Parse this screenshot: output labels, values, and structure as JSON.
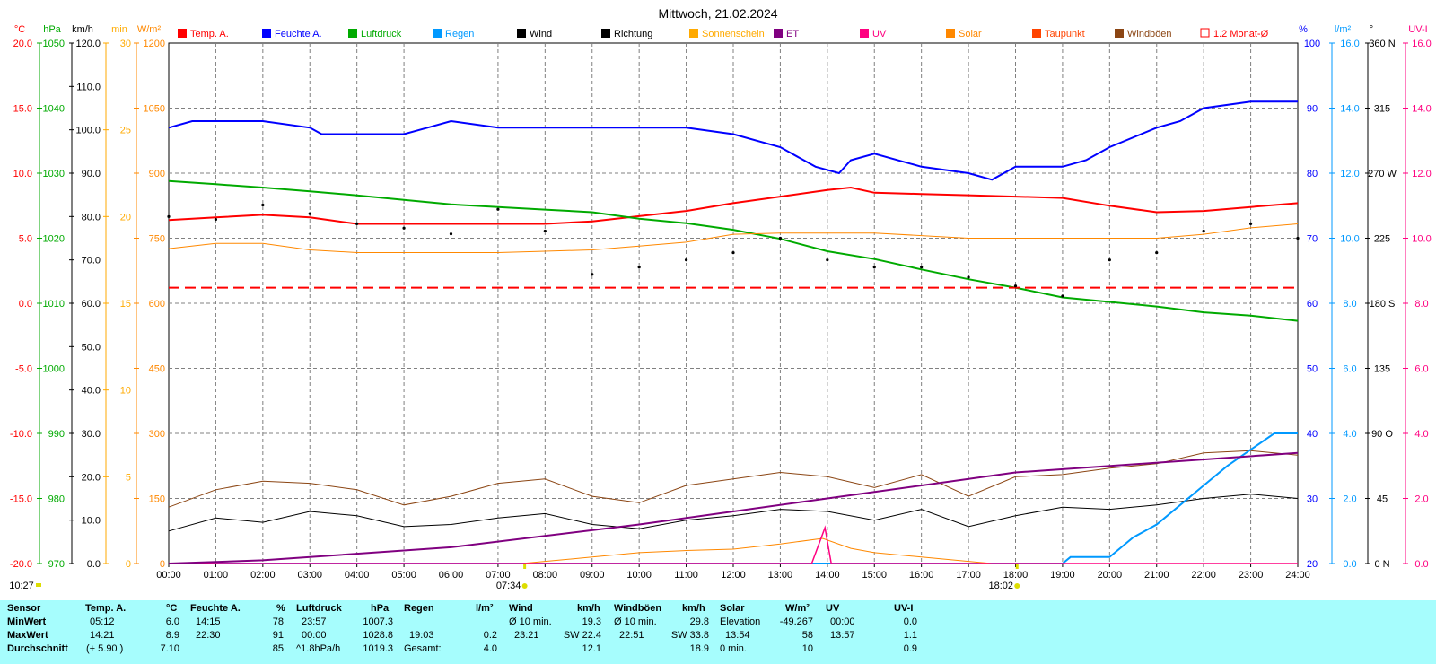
{
  "title": "Mittwoch, 21.02.2024",
  "colors": {
    "temp": "#ff0000",
    "hum": "#0000ff",
    "press": "#00aa00",
    "rain": "#0099ff",
    "wind": "#000000",
    "dir": "#000000",
    "sunshine": "#ffaa00",
    "et": "#800080",
    "uv": "#ff0080",
    "solar": "#ff8800",
    "dew": "#ff4400",
    "gust": "#8b4513",
    "avg": "#ff0000",
    "panel": "#a6fdfd"
  },
  "legend": [
    {
      "key": "temp",
      "label": "Temp. A."
    },
    {
      "key": "hum",
      "label": "Feuchte A."
    },
    {
      "key": "press",
      "label": "Luftdruck"
    },
    {
      "key": "rain",
      "label": "Regen"
    },
    {
      "key": "wind",
      "label": "Wind"
    },
    {
      "key": "dir",
      "label": "Richtung"
    },
    {
      "key": "sunshine",
      "label": "Sonnenschein"
    },
    {
      "key": "et",
      "label": "ET"
    },
    {
      "key": "uv",
      "label": "UV"
    },
    {
      "key": "solar",
      "label": "Solar"
    },
    {
      "key": "dew",
      "label": "Taupunkt"
    },
    {
      "key": "gust",
      "label": "Windböen"
    },
    {
      "key": "avg",
      "label": "1.2 Monat-Ø"
    }
  ],
  "axes": {
    "temp": {
      "unit": "°C",
      "ticks": [
        "20.0",
        "15.0",
        "10.0",
        "5.0",
        "0.0",
        "-5.0",
        "-10.0",
        "-15.0",
        "-20.0"
      ]
    },
    "press": {
      "unit": "hPa",
      "ticks": [
        "1050",
        "1040",
        "1030",
        "1020",
        "1010",
        "1000",
        "990",
        "980",
        "970"
      ]
    },
    "wind": {
      "unit": "km/h",
      "ticks": [
        "120.0",
        "110.0",
        "100.0",
        "90.0",
        "80.0",
        "70.0",
        "60.0",
        "50.0",
        "40.0",
        "30.0",
        "20.0",
        "10.0",
        "0.0"
      ]
    },
    "sunshine": {
      "unit": "min",
      "ticks": [
        "30",
        "25",
        "20",
        "15",
        "10",
        "5",
        "0"
      ]
    },
    "solar": {
      "unit": "W/m²",
      "ticks": [
        "1200",
        "1050",
        "900",
        "750",
        "600",
        "450",
        "300",
        "150",
        "0"
      ]
    },
    "hum": {
      "unit": "%",
      "ticks": [
        "100",
        "90",
        "80",
        "70",
        "60",
        "50",
        "40",
        "30",
        "20"
      ]
    },
    "rain": {
      "unit": "l/m²",
      "ticks": [
        "16.0",
        "14.0",
        "12.0",
        "10.0",
        "8.0",
        "6.0",
        "4.0",
        "2.0",
        "0.0"
      ]
    },
    "dir": {
      "unit": "°",
      "ticks": [
        "360 N",
        "315",
        "270 W",
        "225",
        "180 S",
        "135",
        "90 O",
        "45",
        "0 N"
      ]
    },
    "uvi": {
      "unit": "UV-I",
      "ticks": [
        "16.0",
        "14.0",
        "12.0",
        "10.0",
        "8.0",
        "6.0",
        "4.0",
        "2.0",
        "0.0"
      ]
    }
  },
  "x_ticks": [
    "00:00",
    "01:00",
    "02:00",
    "03:00",
    "04:00",
    "05:00",
    "06:00",
    "07:00",
    "08:00",
    "09:00",
    "10:00",
    "11:00",
    "12:00",
    "13:00",
    "14:00",
    "15:00",
    "16:00",
    "17:00",
    "18:00",
    "19:00",
    "20:00",
    "21:00",
    "22:00",
    "23:00",
    "24:00"
  ],
  "markers": {
    "time_now": "10:27",
    "sunrise": "07:34",
    "sunset": "18:02"
  },
  "chart_data": {
    "type": "line",
    "title": "Mittwoch, 21.02.2024",
    "x_range": [
      "00:00",
      "24:00"
    ],
    "grid": true,
    "legend_position": "top",
    "series": [
      {
        "name": "Temp. A.",
        "unit": "°C",
        "x": [
          "00:00",
          "01:00",
          "02:00",
          "03:00",
          "04:00",
          "05:00",
          "06:00",
          "07:00",
          "08:00",
          "09:00",
          "10:00",
          "11:00",
          "12:00",
          "13:00",
          "14:00",
          "14:30",
          "15:00",
          "16:00",
          "17:00",
          "18:00",
          "19:00",
          "20:00",
          "21:00",
          "22:00",
          "23:00",
          "24:00"
        ],
        "y": [
          6.4,
          6.6,
          6.8,
          6.6,
          6.1,
          6.1,
          6.1,
          6.1,
          6.1,
          6.3,
          6.7,
          7.1,
          7.7,
          8.2,
          8.7,
          8.9,
          8.5,
          8.4,
          8.3,
          8.2,
          8.1,
          7.5,
          7.0,
          7.1,
          7.4,
          7.7
        ]
      },
      {
        "name": "Feuchte A.",
        "unit": "%",
        "x": [
          "00:00",
          "00:30",
          "01:00",
          "02:00",
          "03:00",
          "03:15",
          "04:00",
          "05:00",
          "05:30",
          "06:00",
          "07:00",
          "08:00",
          "09:00",
          "10:00",
          "11:00",
          "12:00",
          "13:00",
          "13:45",
          "14:15",
          "14:30",
          "15:00",
          "16:00",
          "17:00",
          "17:30",
          "18:00",
          "19:00",
          "19:30",
          "20:00",
          "21:00",
          "21:30",
          "22:00",
          "23:00",
          "24:00"
        ],
        "y": [
          87,
          88,
          88,
          88,
          87,
          86,
          86,
          86,
          87,
          88,
          87,
          87,
          87,
          87,
          87,
          86,
          84,
          81,
          80,
          82,
          83,
          81,
          80,
          79,
          81,
          81,
          82,
          84,
          87,
          88,
          90,
          91,
          91
        ]
      },
      {
        "name": "Luftdruck",
        "unit": "hPa",
        "x": [
          "00:00",
          "01:00",
          "02:00",
          "03:00",
          "04:00",
          "05:00",
          "06:00",
          "07:00",
          "08:00",
          "09:00",
          "10:00",
          "11:00",
          "12:00",
          "13:00",
          "14:00",
          "15:00",
          "16:00",
          "17:00",
          "18:00",
          "19:00",
          "20:00",
          "21:00",
          "22:00",
          "23:00",
          "24:00"
        ],
        "y": [
          1028.8,
          1028.3,
          1027.8,
          1027.2,
          1026.6,
          1025.9,
          1025.2,
          1024.8,
          1024.4,
          1024.0,
          1023.0,
          1022.3,
          1021.3,
          1019.9,
          1018.0,
          1016.8,
          1015.2,
          1013.7,
          1012.4,
          1010.9,
          1010.2,
          1009.5,
          1008.6,
          1008.1,
          1007.3
        ]
      },
      {
        "name": "Taupunkt",
        "unit": "°C",
        "x": [
          "00:00",
          "01:00",
          "02:00",
          "03:00",
          "04:00",
          "05:00",
          "06:00",
          "07:00",
          "08:00",
          "09:00",
          "10:00",
          "11:00",
          "12:00",
          "13:00",
          "14:00",
          "15:00",
          "16:00",
          "17:00",
          "18:00",
          "19:00",
          "20:00",
          "21:00",
          "22:00",
          "23:00",
          "24:00"
        ],
        "y": [
          4.2,
          4.6,
          4.6,
          4.1,
          3.9,
          3.9,
          3.9,
          3.9,
          4.0,
          4.1,
          4.4,
          4.7,
          5.3,
          5.4,
          5.4,
          5.4,
          5.2,
          5.0,
          5.0,
          5.0,
          5.0,
          5.0,
          5.3,
          5.8,
          6.1
        ]
      },
      {
        "name": "1.2 Monat-Ø",
        "unit": "°C",
        "x": [
          "00:00",
          "24:00"
        ],
        "y": [
          1.2,
          1.2
        ]
      },
      {
        "name": "Wind",
        "unit": "km/h",
        "x": [
          "00:00",
          "01:00",
          "02:00",
          "03:00",
          "04:00",
          "05:00",
          "06:00",
          "07:00",
          "08:00",
          "09:00",
          "10:00",
          "11:00",
          "12:00",
          "13:00",
          "14:00",
          "15:00",
          "16:00",
          "17:00",
          "18:00",
          "19:00",
          "20:00",
          "21:00",
          "22:00",
          "23:00",
          "24:00"
        ],
        "y": [
          7.5,
          10.5,
          9.5,
          12.0,
          11.0,
          8.5,
          9.0,
          10.5,
          11.5,
          9.0,
          8.0,
          10.0,
          11.0,
          12.5,
          12.0,
          10.0,
          12.5,
          8.5,
          11.0,
          13.0,
          12.5,
          13.5,
          15.0,
          16.0,
          15.0
        ]
      },
      {
        "name": "Windböen",
        "unit": "km/h",
        "x": [
          "00:00",
          "01:00",
          "02:00",
          "03:00",
          "04:00",
          "05:00",
          "06:00",
          "07:00",
          "08:00",
          "09:00",
          "10:00",
          "11:00",
          "12:00",
          "13:00",
          "14:00",
          "15:00",
          "16:00",
          "17:00",
          "18:00",
          "19:00",
          "20:00",
          "21:00",
          "22:00",
          "23:00",
          "24:00"
        ],
        "y": [
          13.0,
          17.0,
          19.0,
          18.5,
          17.0,
          13.5,
          15.5,
          18.5,
          19.5,
          15.5,
          14.0,
          18.0,
          19.5,
          21.0,
          20.0,
          17.5,
          20.5,
          15.5,
          20.0,
          20.5,
          22.0,
          23.0,
          25.5,
          26.0,
          25.0
        ]
      },
      {
        "name": "Richtung",
        "unit": "°",
        "type": "scatter",
        "x": [
          "00:00",
          "01:00",
          "02:00",
          "03:00",
          "04:00",
          "05:00",
          "06:00",
          "07:00",
          "08:00",
          "09:00",
          "10:00",
          "11:00",
          "12:00",
          "13:00",
          "14:00",
          "15:00",
          "16:00",
          "17:00",
          "18:00",
          "19:00",
          "20:00",
          "21:00",
          "22:00",
          "23:00",
          "24:00"
        ],
        "y": [
          240,
          238,
          248,
          242,
          235,
          232,
          228,
          245,
          230,
          200,
          205,
          210,
          215,
          225,
          210,
          205,
          205,
          198,
          192,
          185,
          210,
          215,
          230,
          235,
          225
        ]
      },
      {
        "name": "Regen",
        "unit": "l/m²",
        "x": [
          "00:00",
          "19:00",
          "19:10",
          "20:00",
          "20:30",
          "21:00",
          "21:30",
          "22:00",
          "22:30",
          "23:00",
          "23:30",
          "24:00"
        ],
        "y": [
          0.0,
          0.0,
          0.2,
          0.2,
          0.8,
          1.2,
          1.8,
          2.4,
          3.0,
          3.5,
          4.0,
          4.0
        ]
      },
      {
        "name": "Solar",
        "unit": "W/m²",
        "x": [
          "00:00",
          "07:30",
          "08:00",
          "09:00",
          "10:00",
          "11:00",
          "12:00",
          "13:00",
          "13:54",
          "14:30",
          "15:00",
          "16:00",
          "17:00",
          "17:30",
          "24:00"
        ],
        "y": [
          0,
          0,
          5,
          15,
          25,
          30,
          33,
          45,
          58,
          35,
          25,
          15,
          5,
          0,
          0
        ]
      },
      {
        "name": "UV",
        "unit": "UV-I",
        "x": [
          "00:00",
          "13:40",
          "13:57",
          "14:05",
          "24:00"
        ],
        "y": [
          0,
          0,
          1.1,
          0,
          0
        ]
      },
      {
        "name": "ET",
        "unit": "mm",
        "x": [
          "00:00",
          "02:00",
          "06:00",
          "10:00",
          "14:00",
          "18:00",
          "24:00"
        ],
        "y": [
          0.0,
          0.1,
          0.5,
          1.2,
          2.0,
          2.8,
          3.4
        ]
      }
    ]
  },
  "summary": {
    "row_labels": [
      "Sensor",
      "MinWert",
      "MaxWert",
      "Durchschnitt"
    ],
    "temp": {
      "head": "Temp. A.",
      "unit": "°C",
      "min_time": "05:12",
      "min": "6.0",
      "max_time": "14:21",
      "max": "8.9",
      "avg_note": "(+ 5.90 )",
      "avg": "7.10"
    },
    "hum": {
      "head": "Feuchte A.",
      "unit": "%",
      "min_time": "14:15",
      "min": "78",
      "max_time": "22:30",
      "max": "91",
      "avg": "85"
    },
    "press": {
      "head": "Luftdruck",
      "unit": "hPa",
      "min_time": "23:57",
      "min": "1007.3",
      "max_time": "00:00",
      "max": "1028.8",
      "avg_note": "^1.8hPa/h",
      "avg": "1019.3"
    },
    "rain": {
      "head": "Regen",
      "unit": "l/m²",
      "max_time": "19:03",
      "max": "0.2",
      "avg_note": "Gesamt:",
      "avg": "4.0"
    },
    "wind": {
      "head": "Wind",
      "unit": "km/h",
      "min_label": "Ø 10 min.",
      "min": "19.3",
      "max_time": "23:21",
      "max": "SW 22.4",
      "avg": "12.1"
    },
    "gust": {
      "head": "Windböen",
      "unit": "km/h",
      "min_label": "Ø 10 min.",
      "min": "29.8",
      "max_time": "22:51",
      "max": "SW 33.8",
      "avg": "18.9"
    },
    "solar": {
      "head": "Solar",
      "unit": "W/m²",
      "min_label": "Elevation",
      "min": "-49.267",
      "max_time": "13:54",
      "max": "58",
      "avg_note": "0 min.",
      "avg": "10"
    },
    "uv": {
      "head": "UV",
      "unit": "UV-I",
      "min_time": "00:00",
      "min": "0.0",
      "max_time": "13:57",
      "max": "1.1",
      "avg": "0.9"
    }
  }
}
